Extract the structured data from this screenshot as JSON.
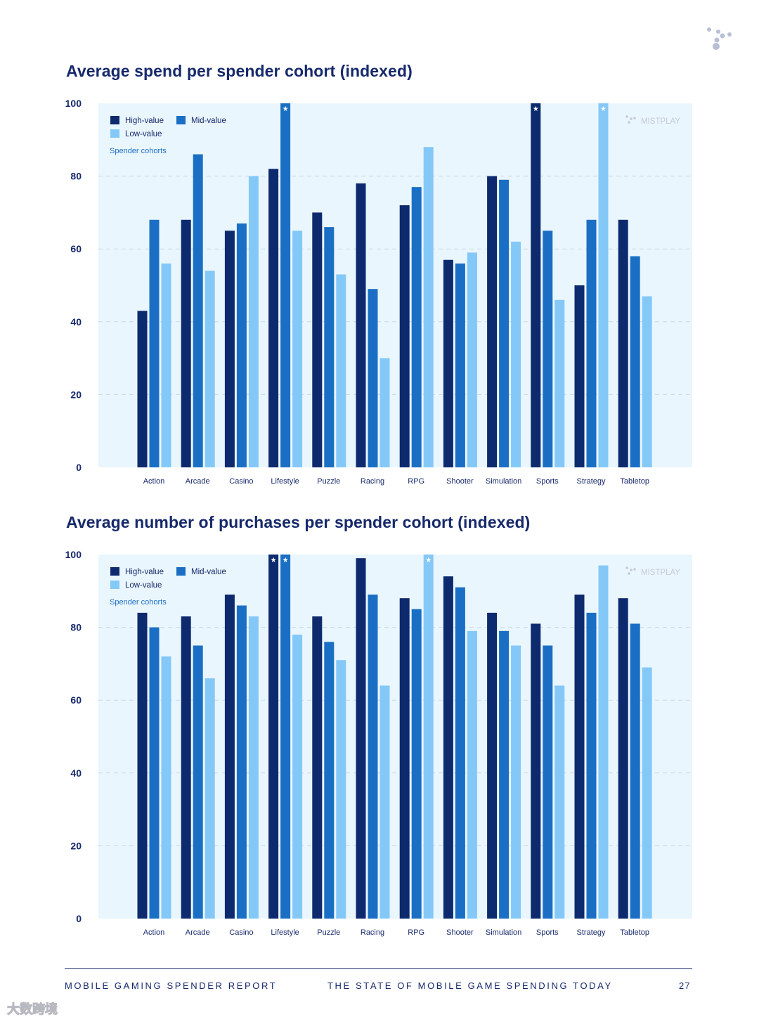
{
  "charts": [
    {
      "title": "Average spend per spender cohort (indexed)",
      "chart_data": {
        "type": "bar",
        "title": "Average spend per spender cohort (indexed)",
        "categories": [
          "Action",
          "Arcade",
          "Casino",
          "Lifestyle",
          "Puzzle",
          "Racing",
          "RPG",
          "Shooter",
          "Simulation",
          "Sports",
          "Strategy",
          "Tabletop"
        ],
        "series": [
          {
            "name": "High-value",
            "color": "#0e2a6e",
            "values": [
              43,
              68,
              65,
              82,
              70,
              78,
              72,
              57,
              80,
              100,
              50,
              68
            ]
          },
          {
            "name": "Mid-value",
            "color": "#1a6fc4",
            "values": [
              68,
              86,
              67,
              100,
              66,
              49,
              77,
              56,
              79,
              65,
              68,
              58
            ]
          },
          {
            "name": "Low-value",
            "color": "#84c8f8",
            "values": [
              56,
              54,
              80,
              65,
              53,
              30,
              88,
              59,
              62,
              46,
              100,
              47
            ]
          }
        ],
        "starred": [
          {
            "category": "Lifestyle",
            "series": "Mid-value"
          },
          {
            "category": "Sports",
            "series": "High-value"
          },
          {
            "category": "Strategy",
            "series": "Low-value"
          }
        ],
        "ylim": [
          0,
          100
        ],
        "yticks": [
          "0",
          "20",
          "40",
          "60",
          "80",
          "100"
        ],
        "xlabel": "",
        "ylabel": "",
        "legend_title": "Spender cohorts",
        "legend_position": "top-left",
        "watermark": "MISTPLAY",
        "grid": true
      }
    },
    {
      "title": "Average number of purchases per spender cohort (indexed)",
      "chart_data": {
        "type": "bar",
        "title": "Average number of purchases per spender cohort (indexed)",
        "categories": [
          "Action",
          "Arcade",
          "Casino",
          "Lifestyle",
          "Puzzle",
          "Racing",
          "RPG",
          "Shooter",
          "Simulation",
          "Sports",
          "Strategy",
          "Tabletop"
        ],
        "series": [
          {
            "name": "High-value",
            "color": "#0e2a6e",
            "values": [
              84,
              83,
              89,
              100,
              83,
              99,
              88,
              94,
              84,
              81,
              89,
              88
            ]
          },
          {
            "name": "Mid-value",
            "color": "#1a6fc4",
            "values": [
              80,
              75,
              86,
              100,
              76,
              89,
              85,
              91,
              79,
              75,
              84,
              81
            ]
          },
          {
            "name": "Low-value",
            "color": "#84c8f8",
            "values": [
              72,
              66,
              83,
              78,
              71,
              64,
              100,
              79,
              75,
              64,
              97,
              69
            ]
          }
        ],
        "starred": [
          {
            "category": "Lifestyle",
            "series": "High-value"
          },
          {
            "category": "Lifestyle",
            "series": "Mid-value"
          },
          {
            "category": "RPG",
            "series": "Low-value"
          }
        ],
        "ylim": [
          0,
          100
        ],
        "yticks": [
          "0",
          "20",
          "40",
          "60",
          "80",
          "100"
        ],
        "xlabel": "",
        "ylabel": "",
        "legend_title": "Spender cohorts",
        "legend_position": "top-left",
        "watermark": "MISTPLAY",
        "grid": true
      }
    }
  ],
  "footer": {
    "left": "MOBILE GAMING SPENDER REPORT",
    "center": "THE STATE OF MOBILE GAME SPENDING TODAY",
    "page": "27"
  },
  "watermark_corner": "大数跨境"
}
